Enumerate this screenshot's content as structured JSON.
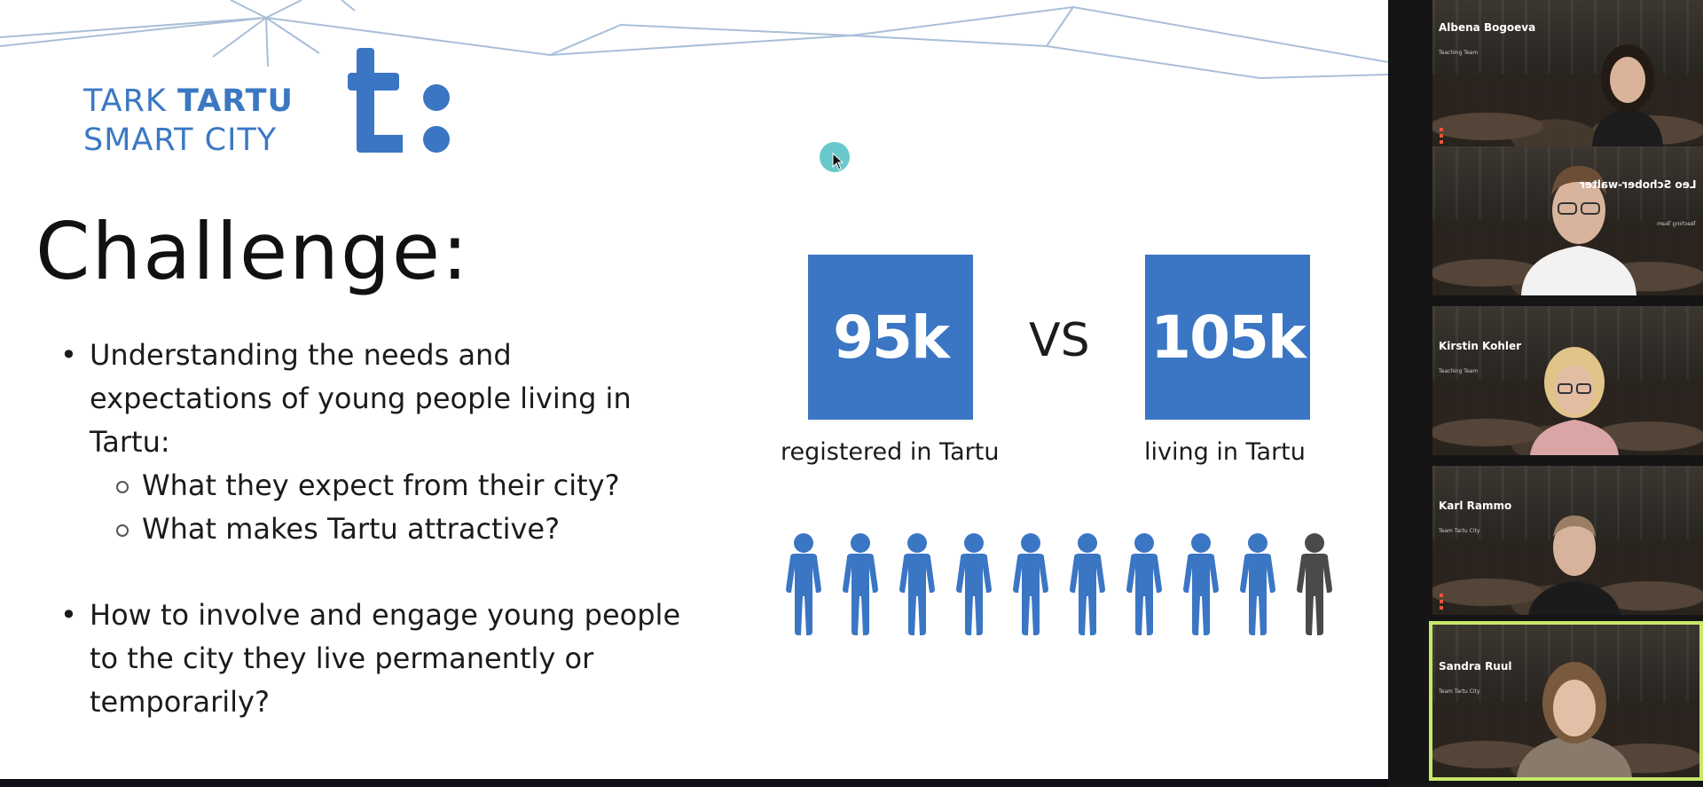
{
  "slide": {
    "logo_line1_a": "TARK ",
    "logo_line1_b": "TARTU",
    "logo_line2": "SMART CITY",
    "title": "Challenge:",
    "bullet1": "Understanding the needs and expectations of young people living in Tartu:",
    "sub1": "What they expect from their city?",
    "sub2": "What makes Tartu attractive?",
    "bullet2": "How to involve and engage young people to the city they live permanently or temporarily?",
    "stat1_value": "95k",
    "stat1_caption": "registered in Tartu",
    "vs": "VS",
    "stat2_value": "105k",
    "stat2_caption": "living in Tartu",
    "people_total": 10,
    "people_highlighted": 9,
    "colors": {
      "brand": "#3a76c4",
      "people_gray": "#4a4a4a",
      "accent_cursor": "#4cbfc3"
    }
  },
  "participants": [
    {
      "name": "Albena Bogoeva",
      "role": "Teaching Team",
      "speaking": false
    },
    {
      "name": "Leo Schober-walter",
      "role": "Teaching Team",
      "speaking": false,
      "mirrored": true
    },
    {
      "name": "Kirstin Kohler",
      "role": "Teaching Team",
      "speaking": false
    },
    {
      "name": "Karl Rammo",
      "role": "Team Tartu City",
      "speaking": false
    },
    {
      "name": "Sandra Ruul",
      "role": "Team Tartu City",
      "speaking": true
    }
  ],
  "panel_colors": {
    "speaking_border": "#c7e86a"
  }
}
